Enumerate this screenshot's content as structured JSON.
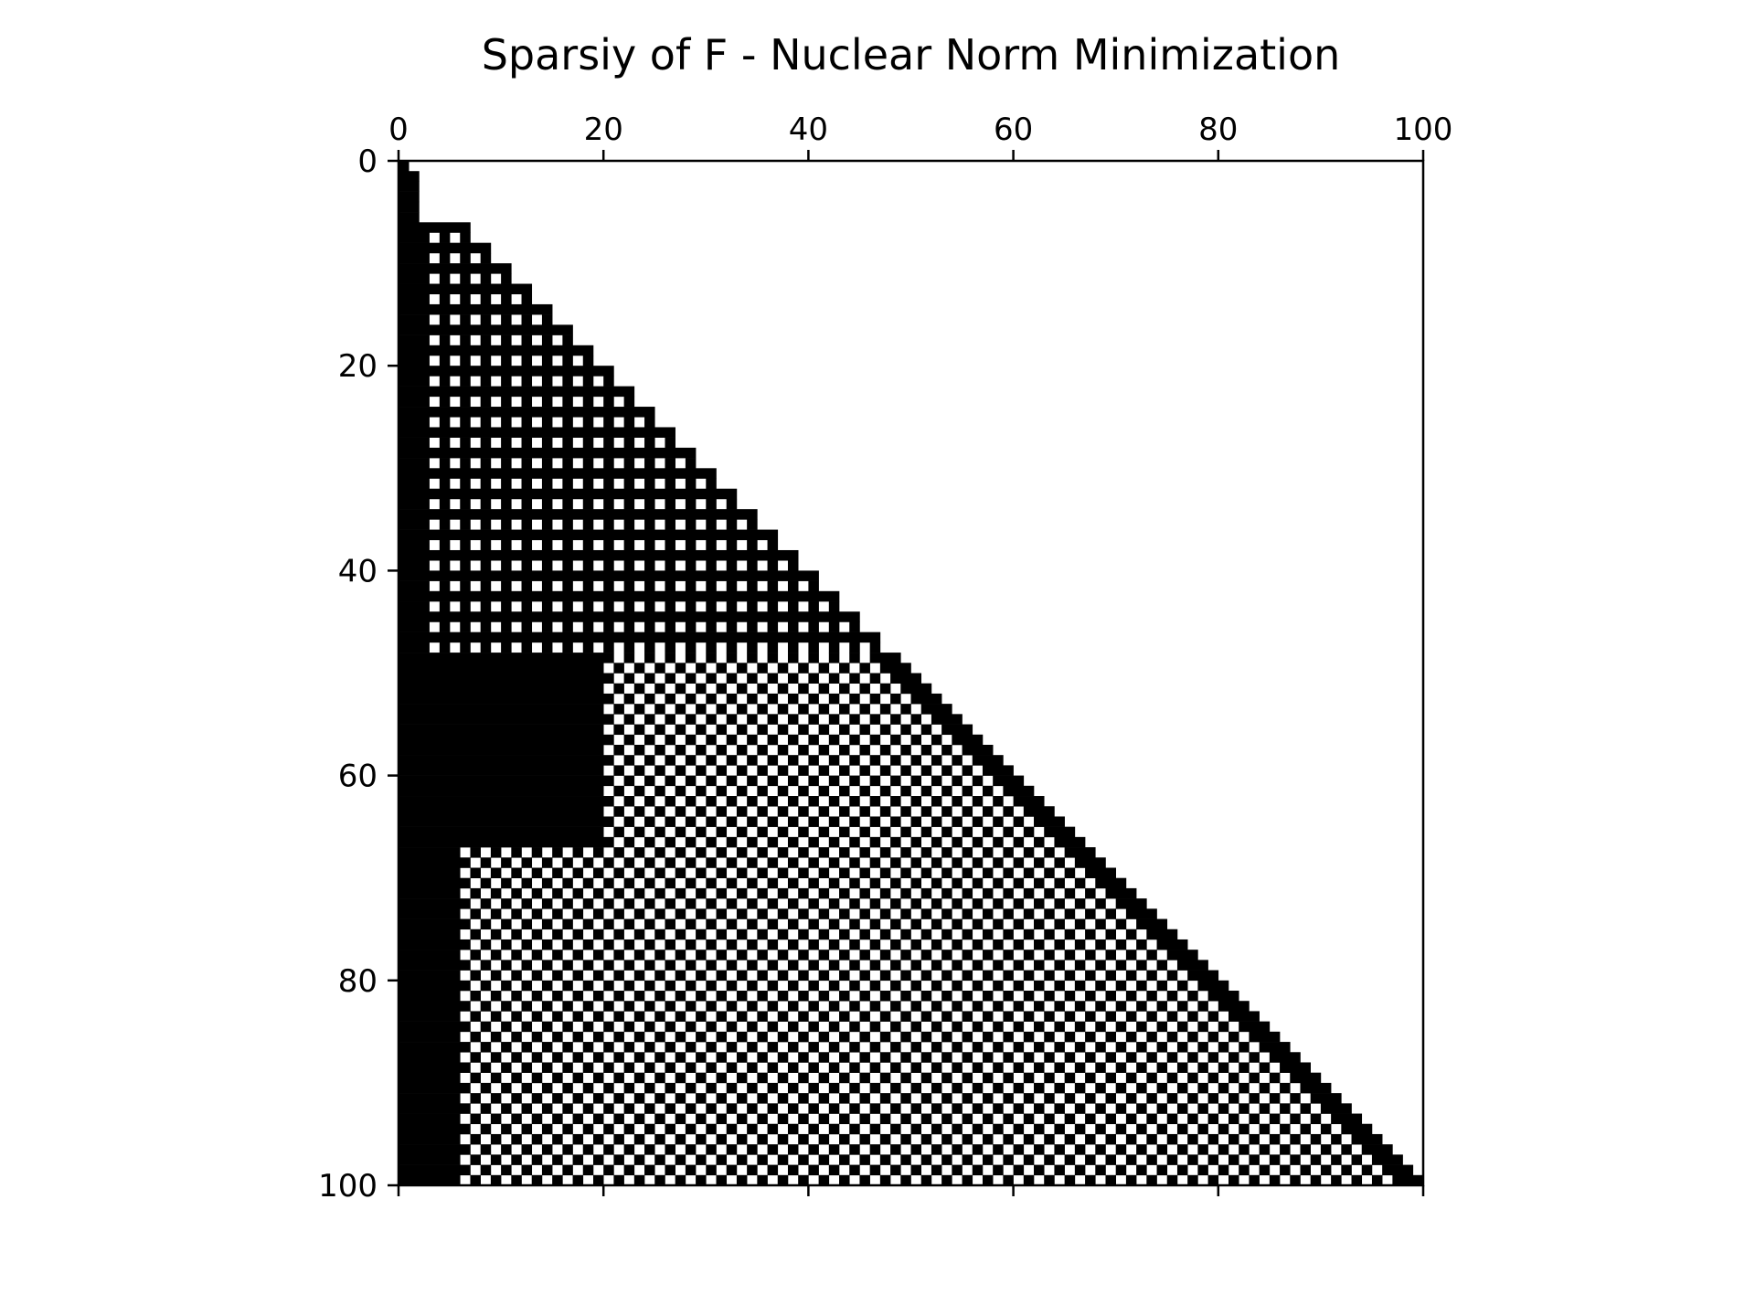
{
  "chart_data": {
    "type": "heatmap",
    "subtype": "sparsity-pattern",
    "title": "Sparsiy of F - Nuclear Norm Minimization",
    "xlabel": "",
    "ylabel": "",
    "rows": 100,
    "cols": 100,
    "x_axis_position": "top",
    "xlim": [
      0,
      100
    ],
    "ylim": [
      100,
      0
    ],
    "xticks": [
      0,
      20,
      40,
      60,
      80,
      100
    ],
    "yticks": [
      0,
      20,
      40,
      60,
      80,
      100
    ],
    "xtick_labels": [
      "0",
      "20",
      "40",
      "60",
      "80",
      "100"
    ],
    "ytick_labels": [
      "0",
      "20",
      "40",
      "60",
      "80",
      "100"
    ],
    "grid": false,
    "legend": "none",
    "colors": {
      "nonzero": "#000000",
      "zero": "#ffffff",
      "axes": "#000000"
    },
    "structure": "lower-triangular; column 0-1 dense; rows 6-47 nonzero on alternating (odd) rows at even columns; rows 48-99 checkerboard pattern with dense block at rows 48-66, cols 0-19; dense left band cols 0-5 for rows 48-99",
    "nonzero_count_estimate": 2600
  }
}
